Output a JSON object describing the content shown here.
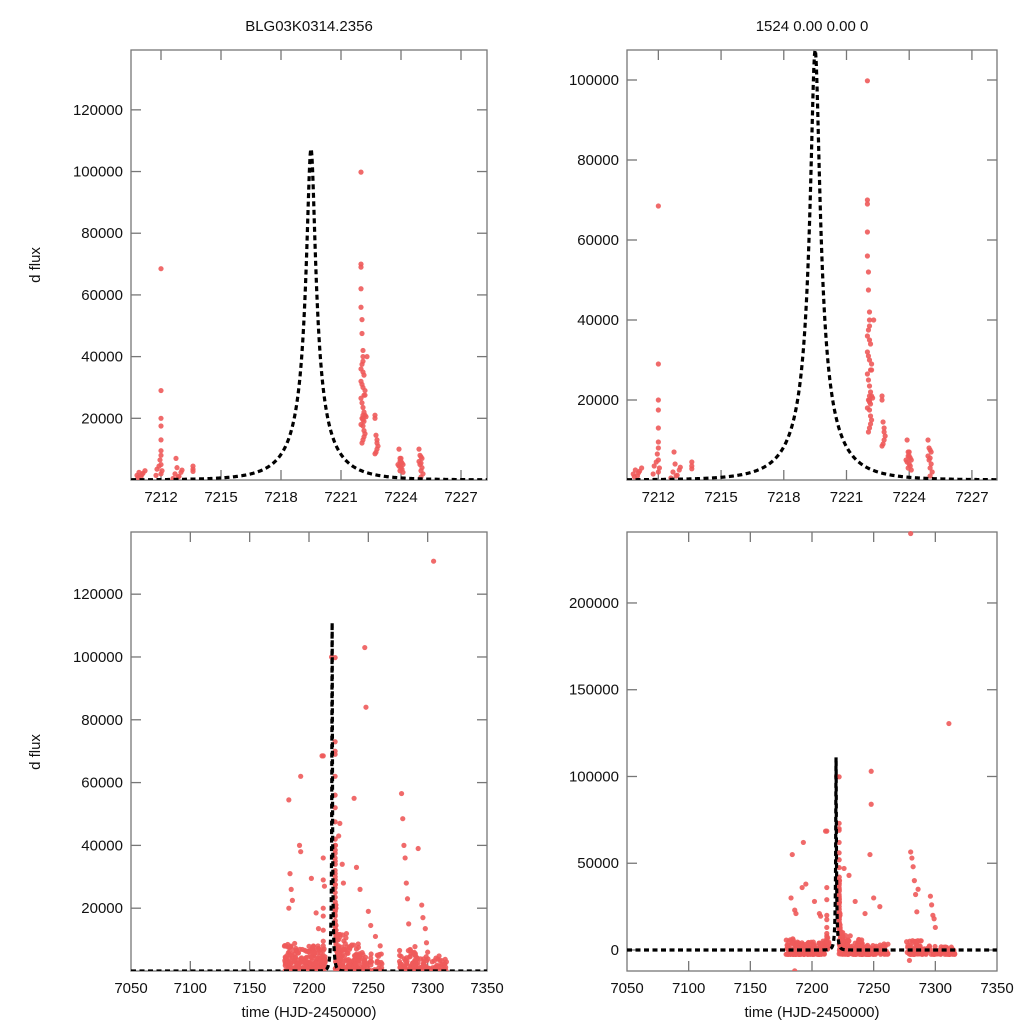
{
  "figure": {
    "point_color": "#ee5a5a",
    "model_color": "#000000",
    "frame_color": "#777777"
  },
  "chart_data": [
    {
      "id": "top-left",
      "type": "scatter",
      "title": "BLG03K0314.2356",
      "xlabel": "",
      "ylabel": "d flux",
      "xlim": [
        7210.5,
        7228.3
      ],
      "ylim": [
        0,
        139400
      ],
      "xticks": [
        7212,
        7215,
        7218,
        7221,
        7224,
        7227
      ],
      "xtick_labels": [
        "7212",
        "7215",
        "7218",
        "7221",
        "7224",
        "7227"
      ],
      "yticks": [
        20000,
        40000,
        60000,
        80000,
        100000,
        120000
      ],
      "ytick_labels": [
        "20000",
        "40000",
        "60000",
        "80000",
        "100000",
        "120000"
      ],
      "model": {
        "type": "pspl",
        "t0": 7219.5,
        "peak": 107500,
        "u0": 0.1,
        "tE": 2.2,
        "base": 0
      },
      "series": [
        {
          "name": "observations",
          "x": [
            7210.8,
            7210.9,
            7211.0,
            7211.1,
            7211.2,
            7210.85,
            7211.05,
            7211.75,
            7211.8,
            7211.9,
            7211.95,
            7212.0,
            7212.0,
            7212.0,
            7212.0,
            7212.0,
            7212.0,
            7212.0,
            7212.0,
            7212.0,
            7212.05,
            7212.6,
            7212.7,
            7212.8,
            7212.9,
            7213.0,
            7213.05,
            7212.75,
            7212.85,
            7213.6,
            7213.6,
            7213.6,
            7222.0,
            7222.0,
            7222.0,
            7222.0,
            7222.0,
            7222.05,
            7222.05,
            7222.1,
            7222.1,
            7222.1,
            7222.05,
            7222.0,
            7222.1,
            7222.15,
            7222.0,
            7222.05,
            7222.1,
            7222.2,
            7222.15,
            7222.0,
            7222.05,
            7222.1,
            7222.15,
            7222.1,
            7222.05,
            7222.1,
            7222.0,
            7222.1,
            7222.15,
            7222.2,
            7222.15,
            7222.1,
            7222.05,
            7222.2,
            7222.25,
            7222.15,
            7222.1,
            7222.2,
            7222.3,
            7222.7,
            7222.7,
            7222.75,
            7222.8,
            7222.8,
            7222.85,
            7222.8,
            7222.75,
            7222.7,
            7223.9,
            7223.95,
            7224.0,
            7224.05,
            7224.1,
            7223.9,
            7224.0,
            7224.05,
            7223.95,
            7224.1,
            7224.0,
            7223.95,
            7223.85,
            7224.9,
            7224.95,
            7225.0,
            7225.05,
            7224.9,
            7225.0,
            7224.95,
            7225.05,
            7225.0,
            7225.1,
            7225.0
          ],
          "y": [
            1500,
            2500,
            1000,
            2200,
            3000,
            800,
            1800,
            1500,
            3500,
            4500,
            6500,
            8000,
            9500,
            13000,
            17500,
            20000,
            29000,
            68500,
            2000,
            5000,
            3000,
            500,
            2000,
            4000,
            1200,
            2500,
            3200,
            7000,
            1000,
            2800,
            4500,
            3500,
            99800,
            70000,
            69000,
            62000,
            56000,
            52000,
            47500,
            42000,
            40000,
            38500,
            37500,
            36000,
            35000,
            34000,
            32000,
            31000,
            30000,
            29000,
            27500,
            26500,
            25000,
            23500,
            22000,
            21000,
            20000,
            19500,
            18000,
            17500,
            16000,
            15000,
            14000,
            13000,
            12000,
            21000,
            20500,
            19000,
            20000,
            27500,
            40000,
            21000,
            20000,
            14500,
            13000,
            12000,
            11000,
            10000,
            9000,
            8500,
            10000,
            7000,
            6000,
            5500,
            5000,
            4500,
            4000,
            3500,
            3000,
            2500,
            7000,
            6000,
            5000,
            10000,
            8000,
            7500,
            7000,
            6000,
            5500,
            5000,
            4000,
            3000,
            2000,
            1000
          ]
        }
      ]
    },
    {
      "id": "top-right",
      "type": "scatter",
      "title": "1524  0.00  0.00  0",
      "xlabel": "",
      "ylabel": "",
      "xlim": [
        7210.5,
        7228.2
      ],
      "ylim": [
        0,
        107500
      ],
      "xticks": [
        7212,
        7215,
        7218,
        7221,
        7224,
        7227
      ],
      "xtick_labels": [
        "7212",
        "7215",
        "7218",
        "7221",
        "7224",
        "7227"
      ],
      "yticks": [
        20000,
        40000,
        60000,
        80000,
        100000
      ],
      "ytick_labels": [
        "20000",
        "40000",
        "60000",
        "80000",
        "100000"
      ],
      "model": {
        "type": "pspl",
        "t0": 7219.5,
        "peak": 107500,
        "u0": 0.1,
        "tE": 2.2,
        "base": 0
      },
      "series_ref": "top-left"
    },
    {
      "id": "bottom-left",
      "type": "scatter",
      "title": "",
      "xlabel": "time (HJD-2450000)",
      "ylabel": "d flux",
      "xlim": [
        7050,
        7350
      ],
      "ylim": [
        0,
        139800
      ],
      "xticks": [
        7050,
        7100,
        7150,
        7200,
        7250,
        7300,
        7350
      ],
      "xtick_labels": [
        "7050",
        "7100",
        "7150",
        "7200",
        "7250",
        "7300",
        "7350"
      ],
      "yticks": [
        20000,
        40000,
        60000,
        80000,
        100000,
        120000
      ],
      "ytick_labels": [
        "20000",
        "40000",
        "60000",
        "80000",
        "100000",
        "120000"
      ],
      "model": {
        "type": "pspl",
        "t0": 7219.5,
        "peak": 111000,
        "u0": 0.1,
        "tE": 2.2,
        "base": 0
      },
      "series": [
        {
          "name": "observations-extra",
          "x": [
            7183,
            7185,
            7184,
            7186,
            7183,
            7193,
            7192,
            7193,
            7202,
            7206,
            7208,
            7211,
            7212,
            7213,
            7219,
            7222,
            7226,
            7225,
            7228,
            7229,
            7238,
            7240,
            7243,
            7247,
            7248,
            7250,
            7252,
            7256,
            7260,
            7278,
            7279,
            7280,
            7281,
            7282,
            7283,
            7284,
            7292,
            7295,
            7296,
            7298,
            7299,
            7300,
            7305
          ],
          "y": [
            54500,
            26000,
            31000,
            22500,
            20000,
            62000,
            40000,
            38000,
            29500,
            18500,
            13500,
            68500,
            36000,
            27000,
            100000,
            73000,
            47000,
            43000,
            34000,
            28000,
            55000,
            33000,
            26000,
            103000,
            84000,
            19000,
            14500,
            11000,
            8000,
            56500,
            48500,
            40000,
            36000,
            28000,
            23000,
            15000,
            39000,
            21000,
            17000,
            13500,
            9000,
            6000,
            130500
          ]
        }
      ]
    },
    {
      "id": "bottom-right",
      "type": "scatter",
      "title": "",
      "xlabel": "time (HJD-2450000)",
      "ylabel": "",
      "xlim": [
        7050,
        7350
      ],
      "ylim": [
        -12100,
        240900
      ],
      "xticks": [
        7050,
        7100,
        7150,
        7200,
        7250,
        7300,
        7350
      ],
      "xtick_labels": [
        "7050",
        "7100",
        "7150",
        "7200",
        "7250",
        "7300",
        "7350"
      ],
      "yticks": [
        0,
        50000,
        100000,
        150000,
        200000
      ],
      "ytick_labels": [
        "0",
        "50000",
        "100000",
        "150000",
        "200000"
      ],
      "model": {
        "type": "pspl",
        "t0": 7219.5,
        "peak": 111000,
        "u0": 0.1,
        "tE": 2.2,
        "base": 0
      },
      "series": [
        {
          "name": "observations-extra",
          "x": [
            7184,
            7183,
            7186,
            7187,
            7193,
            7195,
            7192,
            7202,
            7206,
            7207,
            7211,
            7212,
            7220,
            7222,
            7226,
            7230,
            7235,
            7243,
            7248,
            7248,
            7247,
            7250,
            7255,
            7280,
            7281,
            7282,
            7283,
            7284,
            7286,
            7296,
            7297,
            7298,
            7300,
            7299,
            7311,
            7280,
            7279,
            7186,
            7285
          ],
          "y": [
            55000,
            30000,
            23000,
            21000,
            62000,
            38000,
            36000,
            28000,
            21000,
            19500,
            68500,
            36000,
            100000,
            73000,
            47000,
            43000,
            28000,
            21000,
            103000,
            84000,
            55000,
            30000,
            25000,
            56500,
            53000,
            48000,
            40000,
            32000,
            35000,
            31000,
            26000,
            20000,
            13000,
            18000,
            130500,
            240000,
            -6000,
            -12000,
            22000
          ]
        }
      ]
    }
  ]
}
